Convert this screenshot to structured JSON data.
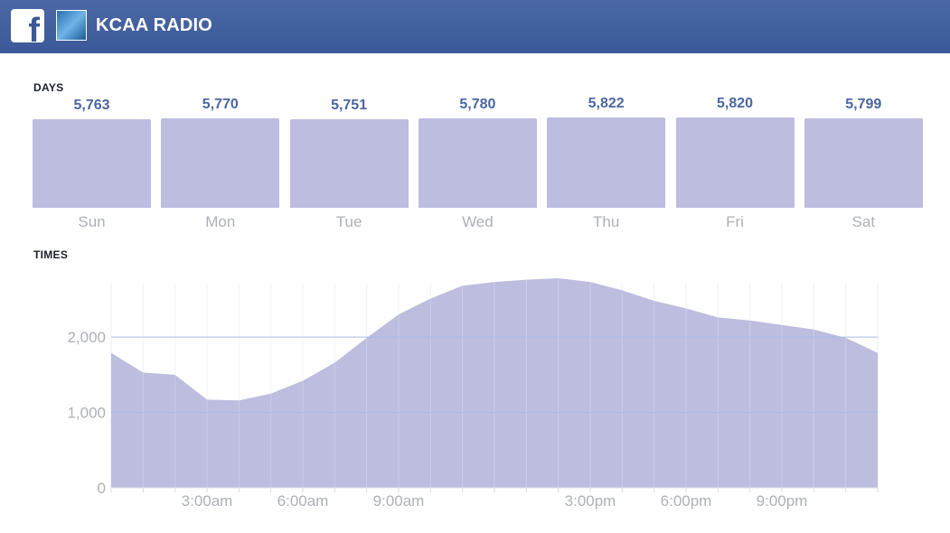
{
  "header": {
    "title": "KCAA RADIO",
    "logo_icon": "facebook-f-icon",
    "avatar_icon": "page-avatar-icon",
    "color": "#3b5998"
  },
  "days": {
    "label": "DAYS"
  },
  "times": {
    "label": "TIMES"
  },
  "chart_data": [
    {
      "type": "bar",
      "categories": [
        "Sun",
        "Mon",
        "Tue",
        "Wed",
        "Thu",
        "Fri",
        "Sat"
      ],
      "values": [
        5763,
        5770,
        5751,
        5780,
        5822,
        5820,
        5799
      ],
      "value_labels": [
        "5,763",
        "5,770",
        "5,751",
        "5,780",
        "5,822",
        "5,820",
        "5,799"
      ],
      "color": "#bcbddf",
      "label_color": "#4b67a0"
    },
    {
      "type": "area",
      "x": [
        0,
        1,
        2,
        3,
        4,
        5,
        6,
        7,
        8,
        9,
        10,
        11,
        12,
        13,
        14,
        15,
        16,
        17,
        18,
        19,
        20,
        21,
        22,
        23,
        24
      ],
      "values": [
        1790,
        1530,
        1500,
        1170,
        1160,
        1250,
        1420,
        1660,
        1990,
        2300,
        2510,
        2680,
        2730,
        2760,
        2780,
        2730,
        2620,
        2480,
        2380,
        2260,
        2220,
        2160,
        2100,
        1990,
        1790
      ],
      "xticks": [
        3,
        6,
        9,
        15,
        18,
        21
      ],
      "xtick_labels": [
        "3:00am",
        "6:00am",
        "9:00am",
        "3:00pm",
        "6:00pm",
        "9:00pm"
      ],
      "yticks": [
        0,
        1000,
        2000
      ],
      "ytick_labels": [
        "0",
        "1,000",
        "2,000"
      ],
      "ylim": [
        0,
        2900
      ],
      "xlim": [
        0,
        24
      ],
      "grid": true,
      "color": "#bcbddf"
    }
  ]
}
